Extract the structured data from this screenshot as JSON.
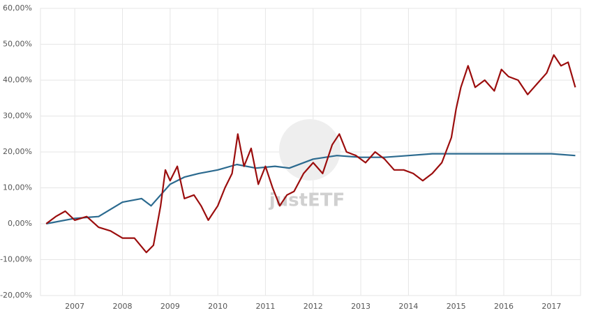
{
  "chart_data": {
    "type": "line",
    "watermark": "justETF",
    "xlim": [
      2006.28,
      2017.61
    ],
    "xticks": [
      2007,
      2008,
      2009,
      2010,
      2011,
      2012,
      2013,
      2014,
      2015,
      2016,
      2017
    ],
    "ylim": [
      -20,
      60
    ],
    "yticks": [
      {
        "value": -20,
        "label": "-20,00%"
      },
      {
        "value": -10,
        "label": "-10,00%"
      },
      {
        "value": 0,
        "label": "0,00%"
      },
      {
        "value": 10,
        "label": "10,00%"
      },
      {
        "value": 20,
        "label": "20,00%"
      },
      {
        "value": 30,
        "label": "30,00%"
      },
      {
        "value": 40,
        "label": "40,00%"
      },
      {
        "value": 50,
        "label": "50,00%"
      },
      {
        "value": 60,
        "label": "60,00%"
      }
    ],
    "grid": true,
    "series": [
      {
        "color": "#2b6a8f",
        "x": [
          2006.4,
          2007.0,
          2007.5,
          2008.0,
          2008.4,
          2008.6,
          2009.0,
          2009.3,
          2009.6,
          2010.0,
          2010.4,
          2010.8,
          2011.2,
          2011.5,
          2012.0,
          2012.5,
          2013.0,
          2013.5,
          2014.0,
          2014.5,
          2015.0,
          2015.5,
          2016.0,
          2016.5,
          2017.0,
          2017.5
        ],
        "values": [
          0,
          1.5,
          2,
          6,
          7,
          5,
          11,
          13,
          14,
          15,
          16.5,
          15.5,
          16,
          15.5,
          18,
          19,
          18.5,
          18.5,
          19,
          19.5,
          19.5,
          19.5,
          19.5,
          19.5,
          19.5,
          19
        ]
      },
      {
        "color": "#9b0d0d",
        "x": [
          2006.4,
          2006.6,
          2006.8,
          2007.0,
          2007.25,
          2007.5,
          2007.75,
          2008.0,
          2008.25,
          2008.5,
          2008.65,
          2008.8,
          2008.9,
          2009.0,
          2009.15,
          2009.3,
          2009.5,
          2009.65,
          2009.8,
          2010.0,
          2010.15,
          2010.3,
          2010.42,
          2010.55,
          2010.7,
          2010.85,
          2011.0,
          2011.15,
          2011.3,
          2011.45,
          2011.6,
          2011.8,
          2012.0,
          2012.2,
          2012.4,
          2012.55,
          2012.7,
          2012.9,
          2013.1,
          2013.3,
          2013.5,
          2013.7,
          2013.9,
          2014.1,
          2014.3,
          2014.5,
          2014.7,
          2014.9,
          2015.0,
          2015.1,
          2015.25,
          2015.4,
          2015.6,
          2015.8,
          2015.95,
          2016.1,
          2016.3,
          2016.5,
          2016.7,
          2016.9,
          2017.05,
          2017.2,
          2017.35,
          2017.5
        ],
        "values": [
          0,
          2,
          3.5,
          1,
          2,
          -1,
          -2,
          -4,
          -4,
          -8,
          -6,
          5,
          15,
          12,
          16,
          7,
          8,
          5,
          1,
          5,
          10,
          14,
          25,
          16,
          21,
          11,
          16,
          10,
          5,
          8,
          9,
          14,
          17,
          14,
          22,
          25,
          20,
          19,
          17,
          20,
          18,
          15,
          15,
          14,
          12,
          14,
          17,
          24,
          32,
          38,
          44,
          38,
          40,
          37,
          43,
          41,
          40,
          36,
          39,
          42,
          47,
          44,
          45,
          38
        ]
      }
    ]
  }
}
